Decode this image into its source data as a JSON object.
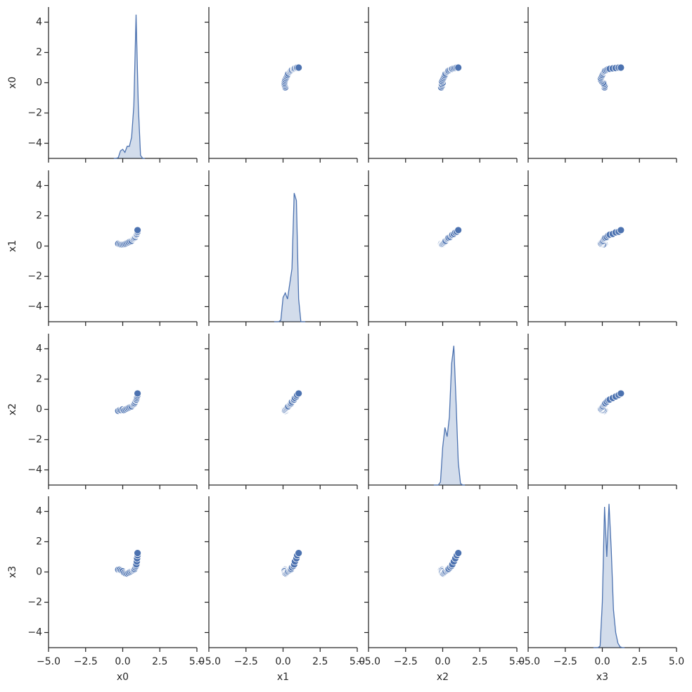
{
  "chart_data": {
    "type": "pairplot",
    "color": "#4c72b0",
    "xlim": [
      -5,
      5
    ],
    "ylim": [
      -5,
      5
    ],
    "xticks": [
      {
        "value": -5,
        "label": "−5.0"
      },
      {
        "value": -2.5,
        "label": "−2.5"
      },
      {
        "value": 0,
        "label": "0.0"
      },
      {
        "value": 2.5,
        "label": "2.5"
      },
      {
        "value": 5,
        "label": "5.0"
      }
    ],
    "yticks": [
      {
        "value": -4,
        "label": "−4"
      },
      {
        "value": -2,
        "label": "−2"
      },
      0,
      2,
      4
    ],
    "kde_grid": [
      -0.6,
      -0.45,
      -0.3,
      -0.15,
      0,
      0.15,
      0.3,
      0.45,
      0.6,
      0.75,
      0.9,
      1.05,
      1.2,
      1.35,
      1.5
    ],
    "variables": [
      {
        "name": "x0",
        "values": [
          -0.3,
          -0.2,
          -0.1,
          0.0,
          0.1,
          0.2,
          0.3,
          0.4,
          0.5,
          0.6,
          0.7,
          0.75,
          0.8,
          0.85,
          0.9,
          0.92,
          0.95,
          0.97,
          1.0,
          1.0
        ],
        "kde": [
          -5,
          -5,
          -4.95,
          -4.5,
          -4.4,
          -4.6,
          -4.2,
          -4.2,
          -3.6,
          -1.5,
          4.5,
          -1.5,
          -4.8,
          -5,
          -5
        ]
      },
      {
        "name": "x1",
        "values": [
          0.15,
          0.12,
          0.1,
          0.1,
          0.12,
          0.15,
          0.2,
          0.25,
          0.3,
          0.35,
          0.45,
          0.5,
          0.55,
          0.6,
          0.7,
          0.75,
          0.8,
          0.9,
          0.95,
          1.05
        ],
        "kde": [
          -5,
          -5,
          -5,
          -4.9,
          -3.4,
          -3.1,
          -3.5,
          -2.5,
          -1.5,
          3.5,
          3.0,
          -3.5,
          -5,
          -5,
          -5
        ]
      },
      {
        "name": "x2",
        "values": [
          -0.1,
          -0.05,
          -0.05,
          0.0,
          -0.05,
          0.0,
          0.05,
          0.1,
          0.15,
          0.2,
          0.3,
          0.35,
          0.4,
          0.5,
          0.6,
          0.65,
          0.75,
          0.85,
          0.95,
          1.05
        ],
        "kde": [
          -5,
          -5,
          -5,
          -4.8,
          -2.5,
          -1.2,
          -1.8,
          -0.5,
          3,
          4.2,
          0.5,
          -3.5,
          -4.9,
          -5,
          -5
        ]
      },
      {
        "name": "x3",
        "values": [
          0.15,
          0.15,
          0.1,
          0.05,
          -0.05,
          -0.1,
          -0.1,
          -0.05,
          0.0,
          0.05,
          0.1,
          0.15,
          0.2,
          0.3,
          0.4,
          0.5,
          0.7,
          0.9,
          1.1,
          1.25
        ],
        "kde": [
          -5,
          -5,
          -5,
          -4.9,
          -2,
          4.3,
          1.0,
          4.5,
          1.5,
          -2.5,
          -4,
          -4.7,
          -4.95,
          -5,
          -5
        ]
      }
    ]
  }
}
